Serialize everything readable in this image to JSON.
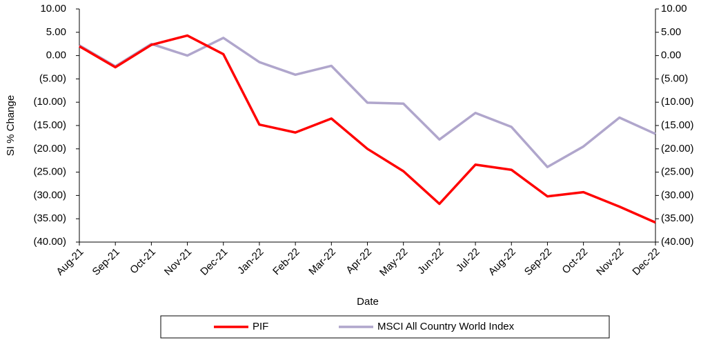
{
  "chart_data": {
    "type": "line",
    "x_label": "Date",
    "y_label": "SI % Change",
    "categories": [
      "Aug-21",
      "Sep-21",
      "Oct-21",
      "Nov-21",
      "Dec-21",
      "Jan-22",
      "Feb-22",
      "Mar-22",
      "Apr-22",
      "May-22",
      "Jun-22",
      "Jul-22",
      "Aug-22",
      "Sep-22",
      "Oct-22",
      "Nov-22",
      "Dec-22"
    ],
    "series": [
      {
        "name": "PIF",
        "color": "#ff0000",
        "values": [
          2.0,
          -2.5,
          2.3,
          4.3,
          0.3,
          -14.8,
          -16.5,
          -13.5,
          -20.0,
          -24.8,
          -31.8,
          -23.4,
          -24.5,
          -30.2,
          -29.3,
          -32.4,
          -35.8
        ]
      },
      {
        "name": "MSCI All Country World Index",
        "color": "#b0a6cc",
        "values": [
          2.2,
          -2.3,
          2.5,
          0.0,
          3.8,
          -1.4,
          -4.1,
          -2.2,
          -10.1,
          -10.3,
          -18.0,
          -12.3,
          -15.3,
          -23.9,
          -19.5,
          -13.3,
          -16.8
        ]
      }
    ],
    "ylim": [
      -40,
      10
    ],
    "yticks": [
      {
        "value": 10,
        "label": "10.00"
      },
      {
        "value": 5,
        "label": "5.00"
      },
      {
        "value": 0,
        "label": "0.00"
      },
      {
        "value": -5,
        "label": "(5.00)"
      },
      {
        "value": -10,
        "label": "(10.00)"
      },
      {
        "value": -15,
        "label": "(15.00)"
      },
      {
        "value": -20,
        "label": "(20.00)"
      },
      {
        "value": -25,
        "label": "(25.00)"
      },
      {
        "value": -30,
        "label": "(30.00)"
      },
      {
        "value": -35,
        "label": "(35.00)"
      },
      {
        "value": -40,
        "label": "(40.00)"
      }
    ],
    "y2lim": [
      -40,
      10
    ],
    "y2ticks": [
      {
        "value": 10,
        "label": "10.00"
      },
      {
        "value": 5,
        "label": "5.00"
      },
      {
        "value": 0,
        "label": "0.00"
      },
      {
        "value": -5,
        "label": "(5.00)"
      },
      {
        "value": -10,
        "label": "(10.00)"
      },
      {
        "value": -15,
        "label": "(15.00)"
      },
      {
        "value": -20,
        "label": "(20.00)"
      },
      {
        "value": -25,
        "label": "(25.00)"
      },
      {
        "value": -30,
        "label": "(30.00)"
      },
      {
        "value": -35,
        "label": "(35.00)"
      },
      {
        "value": -40,
        "label": "(40.00)"
      }
    ],
    "negative_tick_color": "#ff0000",
    "grid": false,
    "legend": "bottom"
  }
}
